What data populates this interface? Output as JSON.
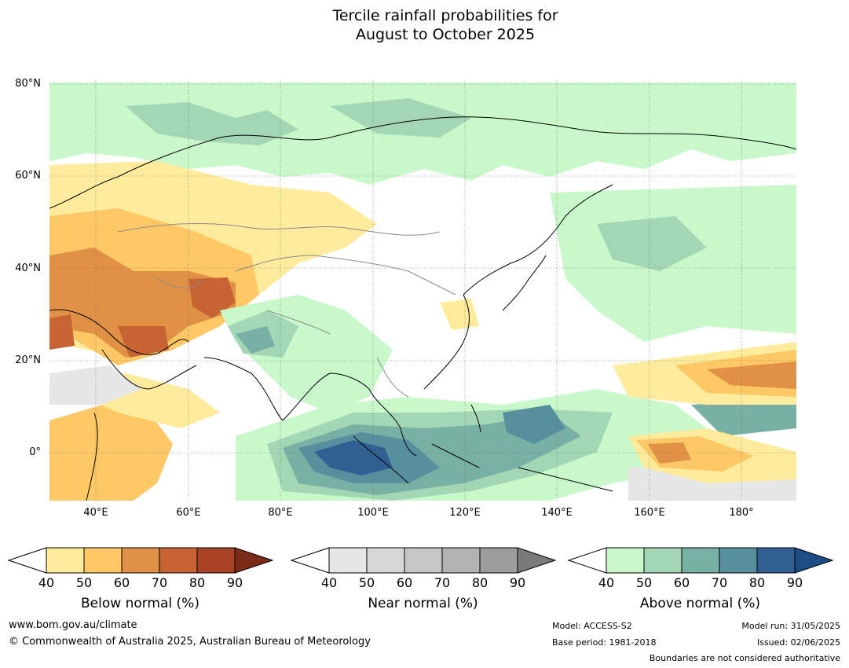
{
  "title": {
    "line1": "Tercile rainfall probabilities for",
    "line2": "August to October 2025"
  },
  "map": {
    "lat_labels": [
      "80°N",
      "60°N",
      "40°N",
      "20°N",
      "0°"
    ],
    "lon_labels": [
      "40°E",
      "60°E",
      "80°E",
      "100°E",
      "120°E",
      "140°E",
      "160°E",
      "180°"
    ],
    "lat_range": [
      -10,
      81
    ],
    "lon_range": [
      30,
      192
    ]
  },
  "colorbars": {
    "ticks": [
      "40",
      "50",
      "60",
      "70",
      "80",
      "90"
    ],
    "below": {
      "label": "Below normal (%)",
      "colors": [
        "#ffeb9c",
        "#fdc865",
        "#e09146",
        "#c76434",
        "#a84424",
        "#7e2a1a"
      ]
    },
    "near": {
      "label": "Near normal (%)",
      "colors": [
        "#e6e6e6",
        "#d7d7d7",
        "#c7c7c7",
        "#b3b3b3",
        "#9d9d9d",
        "#7a7a7a"
      ]
    },
    "above": {
      "label": "Above normal (%)",
      "colors": [
        "#c9f8cb",
        "#a3d6b4",
        "#79b0a6",
        "#56909f",
        "#306092",
        "#1c4d84"
      ]
    }
  },
  "footer": {
    "url": "www.bom.gov.au/climate",
    "copyright": "© Commonwealth of Australia 2025, Australian Bureau of Meteorology",
    "model": "Model: ACCESS-S2",
    "base_period": "Base period: 1981-2018",
    "model_run": "Model run: 31/05/2025",
    "issued": "Issued: 02/06/2025",
    "disclaimer": "Boundaries are not considered authoritative"
  }
}
